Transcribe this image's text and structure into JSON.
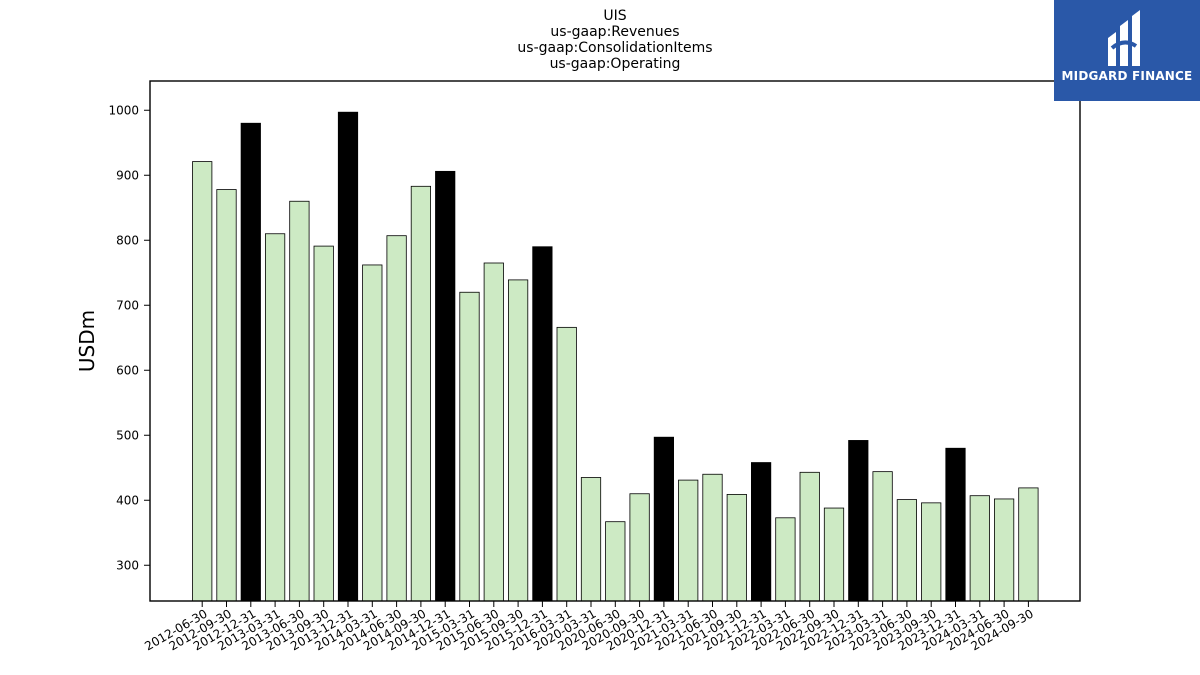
{
  "chart_data": {
    "type": "bar",
    "title": [
      "UIS",
      "us-gaap:Revenues",
      "us-gaap:ConsolidationItems",
      "us-gaap:Operating"
    ],
    "xlabel": "",
    "ylabel": "USDm",
    "ylim": [
      245,
      1045
    ],
    "yticks": [
      300,
      400,
      500,
      600,
      700,
      800,
      900,
      1000
    ],
    "grid": false,
    "colors": {
      "quarter": "#cdeac4",
      "year_end": "#000000",
      "edge": "#000000"
    },
    "categories": [
      "2012-06-30",
      "2012-09-30",
      "2012-12-31",
      "2013-03-31",
      "2013-06-30",
      "2013-09-30",
      "2013-12-31",
      "2014-03-31",
      "2014-06-30",
      "2014-09-30",
      "2014-12-31",
      "2015-03-31",
      "2015-06-30",
      "2015-09-30",
      "2015-12-31",
      "2016-03-31",
      "2020-03-31",
      "2020-06-30",
      "2020-09-30",
      "2020-12-31",
      "2021-03-31",
      "2021-06-30",
      "2021-09-30",
      "2021-12-31",
      "2022-03-31",
      "2022-06-30",
      "2022-09-30",
      "2022-12-31",
      "2023-03-31",
      "2023-06-30",
      "2023-09-30",
      "2023-12-31",
      "2024-03-31",
      "2024-06-30",
      "2024-09-30"
    ],
    "values": [
      921,
      878,
      980,
      810,
      860,
      791,
      997,
      762,
      807,
      883,
      906,
      720,
      765,
      739,
      790,
      666,
      435,
      367,
      410,
      497,
      431,
      440,
      409,
      458,
      373,
      443,
      388,
      492,
      444,
      401,
      396,
      480,
      407,
      402,
      419
    ],
    "highlight": [
      false,
      false,
      true,
      false,
      false,
      false,
      true,
      false,
      false,
      false,
      true,
      false,
      false,
      false,
      true,
      false,
      false,
      false,
      false,
      true,
      false,
      false,
      false,
      true,
      false,
      false,
      false,
      true,
      false,
      false,
      false,
      true,
      false,
      false,
      false
    ]
  },
  "logo": {
    "text": "MIDGARD FINANCE",
    "background": "#2a58a8"
  }
}
